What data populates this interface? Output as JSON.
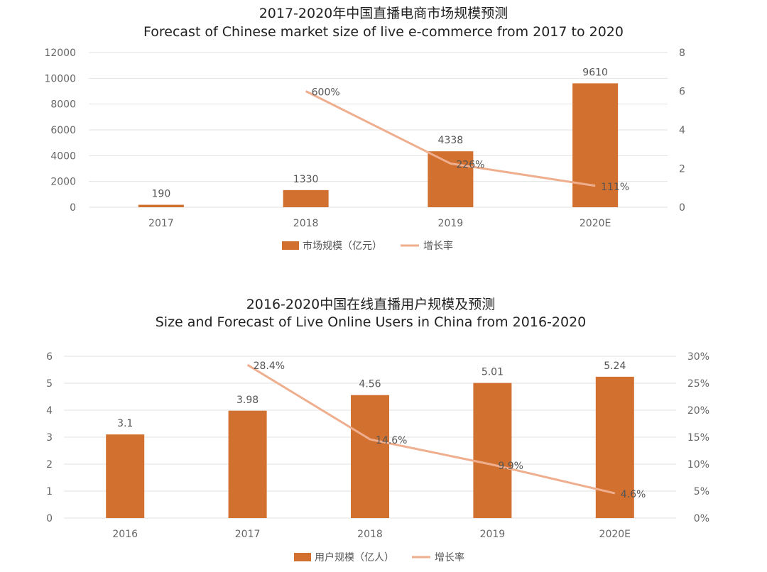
{
  "chart_data": [
    {
      "type": "bar+line",
      "title": "2017-2020年中国直播电商市场规模预测",
      "subtitle": "Forecast of Chinese market size of live e-commerce from 2017 to 2020",
      "categories": [
        "2017",
        "2018",
        "2019",
        "2020E"
      ],
      "series": [
        {
          "name": "市场规模（亿元）",
          "kind": "bar",
          "axis": "left",
          "values": [
            190,
            1330,
            4338,
            9610
          ],
          "labels": [
            "190",
            "1330",
            "4338",
            "9610"
          ]
        },
        {
          "name": "增长率",
          "kind": "line",
          "axis": "right",
          "values": [
            null,
            6.0,
            2.26,
            1.11
          ],
          "labels": [
            null,
            "600%",
            "226%",
            "111%"
          ]
        }
      ],
      "ylim_left": [
        0,
        12000
      ],
      "yticks_left": [
        "0",
        "2000",
        "4000",
        "6000",
        "8000",
        "10000",
        "12000"
      ],
      "ylim_right": [
        0,
        8
      ],
      "yticks_right": [
        "0",
        "2",
        "4",
        "6",
        "8"
      ],
      "grid": true,
      "legend": "bottom",
      "colors": {
        "bar": "#D2702F",
        "line": "#EFAE8E",
        "grid": "#e2e2e2"
      }
    },
    {
      "type": "bar+line",
      "title": "2016-2020中国在线直播用户规模及预测",
      "subtitle": "Size and Forecast of Live Online Users in China from 2016-2020",
      "categories": [
        "2016",
        "2017",
        "2018",
        "2019",
        "2020E"
      ],
      "series": [
        {
          "name": "用户规模（亿人）",
          "kind": "bar",
          "axis": "left",
          "values": [
            3.1,
            3.98,
            4.56,
            5.01,
            5.24
          ],
          "labels": [
            "3.1",
            "3.98",
            "4.56",
            "5.01",
            "5.24"
          ]
        },
        {
          "name": "增长率",
          "kind": "line",
          "axis": "right",
          "values": [
            null,
            28.4,
            14.6,
            9.9,
            4.6
          ],
          "labels": [
            null,
            "28.4%",
            "14.6%",
            "9.9%",
            "4.6%"
          ]
        }
      ],
      "ylim_left": [
        0,
        6
      ],
      "yticks_left": [
        "0",
        "1",
        "2",
        "3",
        "4",
        "5",
        "6"
      ],
      "ylim_right": [
        0,
        30
      ],
      "yticks_right": [
        "0%",
        "5%",
        "10%",
        "15%",
        "20%",
        "25%",
        "30%"
      ],
      "grid": true,
      "legend": "bottom",
      "colors": {
        "bar": "#D2702F",
        "line": "#EFAE8E",
        "grid": "#e2e2e2"
      }
    }
  ]
}
